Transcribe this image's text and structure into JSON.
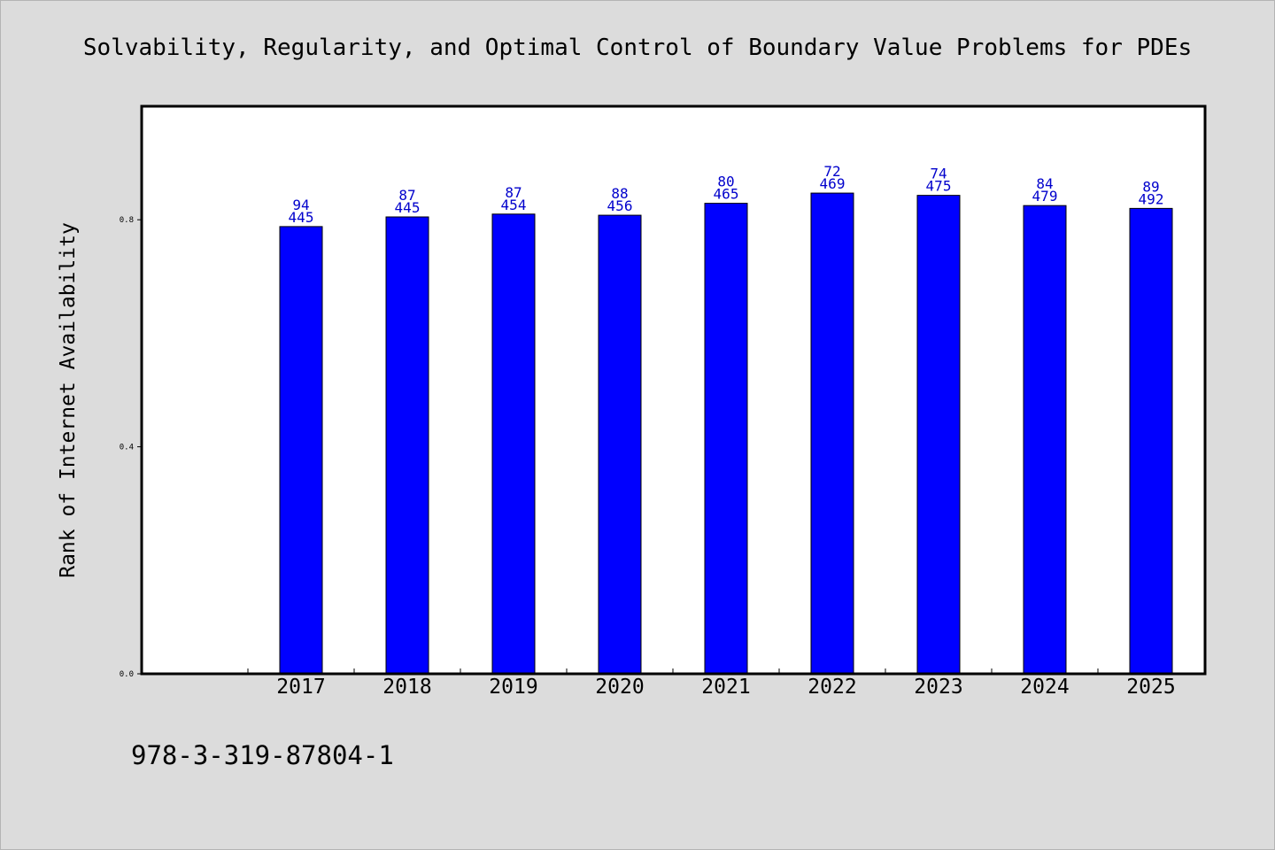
{
  "chart_data": {
    "type": "bar",
    "title": "Solvability, Regularity, and Optimal Control of Boundary Value Problems for PDEs",
    "xlabel": "",
    "ylabel": "Rank of Internet Availability",
    "categories": [
      "2017",
      "2018",
      "2019",
      "2020",
      "2021",
      "2022",
      "2023",
      "2024",
      "2025"
    ],
    "series": [
      {
        "name": "",
        "values": [
          0.788,
          0.805,
          0.81,
          0.808,
          0.829,
          0.847,
          0.843,
          0.825,
          0.82
        ],
        "label_top": [
          "94",
          "87",
          "87",
          "88",
          "80",
          "72",
          "74",
          "84",
          "89"
        ],
        "label_bottom": [
          "445",
          "445",
          "454",
          "456",
          "465",
          "469",
          "475",
          "479",
          "492"
        ]
      }
    ],
    "ylim": [
      0,
      1.0
    ],
    "yticks": [
      0.0,
      0.4,
      0.8
    ],
    "ytick_labels": [
      "0.0",
      "0.4",
      "0.8"
    ],
    "grid": false,
    "legend": "none",
    "colors": {
      "bar": "#0000ff",
      "bar_edge": "#000000",
      "data_label": "#0000cc",
      "background": "#dcdcdc",
      "plot_background": "#ffffff"
    }
  },
  "footer_text": "978-3-319-87804-1"
}
